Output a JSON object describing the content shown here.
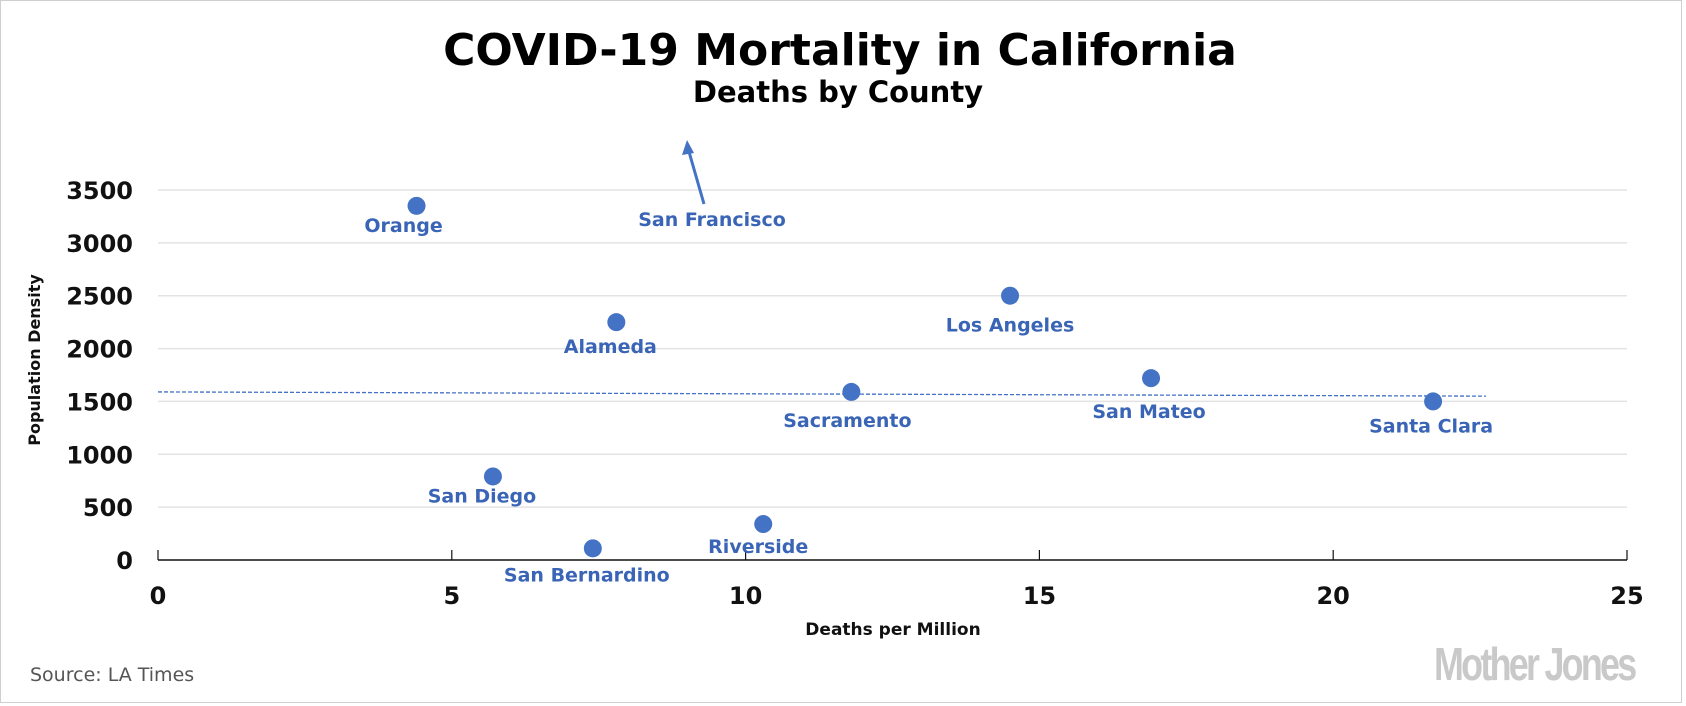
{
  "chart_data": {
    "type": "scatter",
    "title": "COVID-19 Mortality in California",
    "subtitle": "Deaths by County",
    "xlabel": "Deaths per Million",
    "ylabel": "Population Density",
    "xlim": [
      0,
      25
    ],
    "ylim": [
      0,
      3500
    ],
    "xticks": [
      0,
      5,
      10,
      15,
      20,
      25
    ],
    "yticks": [
      0,
      500,
      1000,
      1500,
      2000,
      2500,
      3000,
      3500
    ],
    "grid": "horizontal",
    "marker_color": "#4472c4",
    "label_color": "#3a64b5",
    "points": [
      {
        "name": "Orange",
        "x": 4.4,
        "y": 3350
      },
      {
        "name": "Alameda",
        "x": 7.8,
        "y": 2250
      },
      {
        "name": "Los Angeles",
        "x": 14.5,
        "y": 2500
      },
      {
        "name": "Sacramento",
        "x": 11.8,
        "y": 1590
      },
      {
        "name": "San Mateo",
        "x": 16.9,
        "y": 1720
      },
      {
        "name": "Santa Clara",
        "x": 21.7,
        "y": 1500
      },
      {
        "name": "San Diego",
        "x": 5.7,
        "y": 790
      },
      {
        "name": "Riverside",
        "x": 10.3,
        "y": 340
      },
      {
        "name": "San Bernardino",
        "x": 7.4,
        "y": 110
      }
    ],
    "offscale_annotation": {
      "name": "San Francisco",
      "direction": "up",
      "x": 9.0,
      "note": "arrow pointing above chart (off scale)"
    },
    "trendline": {
      "style": "dashed",
      "x": [
        0,
        22.6
      ],
      "y": [
        1590,
        1550
      ]
    }
  },
  "footer": {
    "source": "Source: LA Times",
    "logo": "Mother Jones"
  }
}
